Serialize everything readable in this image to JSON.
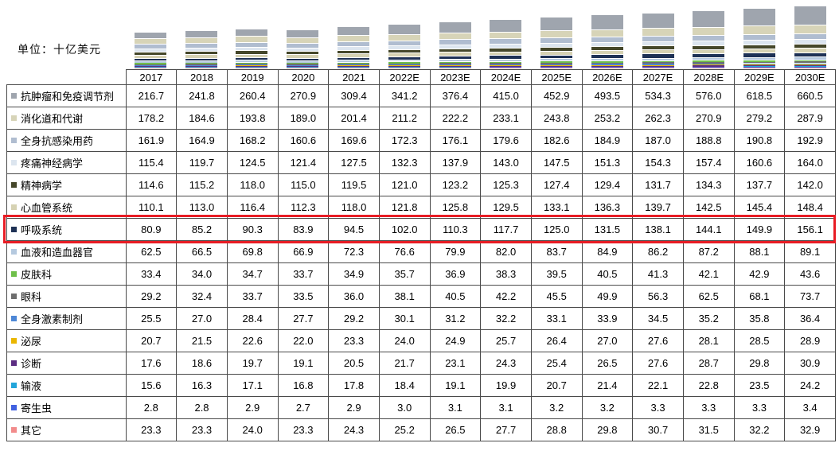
{
  "unit_label": "单位：十亿美元",
  "highlight": {
    "row_label": "呼吸系统",
    "border_color": "#e81c24"
  },
  "chart_data": {
    "type": "bar",
    "stacked": true,
    "title": "",
    "unit": "十亿美元",
    "legend_position": "table-row-labels",
    "value_format": "one-decimal",
    "categories": [
      "2017",
      "2018",
      "2019",
      "2020",
      "2021",
      "2022E",
      "2023E",
      "2024E",
      "2025E",
      "2026E",
      "2027E",
      "2028E",
      "2029E",
      "2030E"
    ],
    "series": [
      {
        "name": "抗肿瘤和免疫调节剂",
        "color": "#9fa5ae",
        "values": [
          216.7,
          241.8,
          260.4,
          270.9,
          309.4,
          341.2,
          376.4,
          415.0,
          452.9,
          493.5,
          534.3,
          576.0,
          618.5,
          660.5
        ]
      },
      {
        "name": "消化道和代谢",
        "color": "#d7d4b8",
        "values": [
          178.2,
          184.6,
          193.8,
          189.0,
          201.4,
          211.2,
          222.2,
          233.1,
          243.8,
          253.2,
          262.3,
          270.9,
          279.2,
          287.9
        ]
      },
      {
        "name": "全身抗感染用药",
        "color": "#b0bdd0",
        "values": [
          161.9,
          164.9,
          168.2,
          160.6,
          169.6,
          172.3,
          176.1,
          179.6,
          182.6,
          184.9,
          187.0,
          188.8,
          190.8,
          192.9
        ]
      },
      {
        "name": "疼痛神经病学",
        "color": "#dce5ef",
        "values": [
          115.4,
          119.7,
          124.5,
          121.4,
          127.5,
          132.3,
          137.9,
          143.0,
          147.5,
          151.3,
          154.3,
          157.4,
          160.6,
          164.0
        ]
      },
      {
        "name": "精神病学",
        "color": "#45472a",
        "values": [
          114.6,
          115.2,
          118.0,
          115.0,
          119.5,
          121.0,
          123.2,
          125.3,
          127.4,
          129.4,
          131.7,
          134.3,
          137.7,
          142.0
        ]
      },
      {
        "name": "心血管系统",
        "color": "#d6d2b3",
        "values": [
          110.1,
          113.0,
          116.4,
          112.3,
          118.0,
          121.8,
          125.8,
          129.5,
          133.1,
          136.3,
          139.7,
          142.5,
          145.4,
          148.4
        ]
      },
      {
        "name": "呼吸系统",
        "color": "#1e3155",
        "values": [
          80.9,
          85.2,
          90.3,
          83.9,
          94.5,
          102.0,
          110.3,
          117.7,
          125.0,
          131.5,
          138.1,
          144.1,
          149.9,
          156.1
        ]
      },
      {
        "name": "血液和造血器官",
        "color": "#b5c9df",
        "values": [
          62.5,
          66.5,
          69.8,
          66.9,
          72.3,
          76.6,
          79.9,
          82.0,
          83.7,
          84.9,
          86.2,
          87.2,
          88.1,
          89.1
        ]
      },
      {
        "name": "皮肤科",
        "color": "#6fbf4a",
        "values": [
          33.4,
          34.0,
          34.7,
          33.7,
          34.9,
          35.7,
          36.9,
          38.3,
          39.5,
          40.5,
          41.3,
          42.1,
          42.9,
          43.6
        ]
      },
      {
        "name": "眼科",
        "color": "#6e6e6e",
        "values": [
          29.2,
          32.4,
          33.7,
          33.5,
          36.0,
          38.1,
          40.5,
          42.2,
          45.5,
          49.9,
          56.3,
          62.5,
          68.1,
          73.7
        ]
      },
      {
        "name": "全身激素制剂",
        "color": "#4d87d6",
        "values": [
          25.5,
          27.0,
          28.4,
          27.7,
          29.2,
          30.1,
          31.2,
          32.2,
          33.1,
          33.9,
          34.5,
          35.2,
          35.8,
          36.4
        ]
      },
      {
        "name": "泌尿",
        "color": "#eab600",
        "values": [
          20.7,
          21.5,
          22.6,
          22.0,
          23.3,
          24.0,
          24.9,
          25.7,
          26.4,
          27.0,
          27.6,
          28.1,
          28.5,
          28.9
        ]
      },
      {
        "name": "诊断",
        "color": "#5c2d82",
        "values": [
          17.6,
          18.6,
          19.7,
          19.1,
          20.5,
          21.7,
          23.1,
          24.3,
          25.4,
          26.5,
          27.6,
          28.7,
          29.8,
          30.9
        ]
      },
      {
        "name": "输液",
        "color": "#22a5da",
        "values": [
          15.6,
          16.3,
          17.1,
          16.8,
          17.8,
          18.4,
          19.1,
          19.9,
          20.7,
          21.4,
          22.1,
          22.8,
          23.5,
          24.2
        ]
      },
      {
        "name": "寄生虫",
        "color": "#4161e0",
        "values": [
          2.8,
          2.8,
          2.9,
          2.7,
          2.9,
          3.0,
          3.1,
          3.1,
          3.2,
          3.2,
          3.3,
          3.3,
          3.3,
          3.4
        ]
      },
      {
        "name": "其它",
        "color": "#f28b8b",
        "values": [
          23.3,
          23.3,
          24.0,
          23.3,
          24.3,
          25.2,
          26.5,
          27.7,
          28.8,
          29.8,
          30.7,
          31.5,
          32.2,
          32.9
        ]
      }
    ]
  }
}
